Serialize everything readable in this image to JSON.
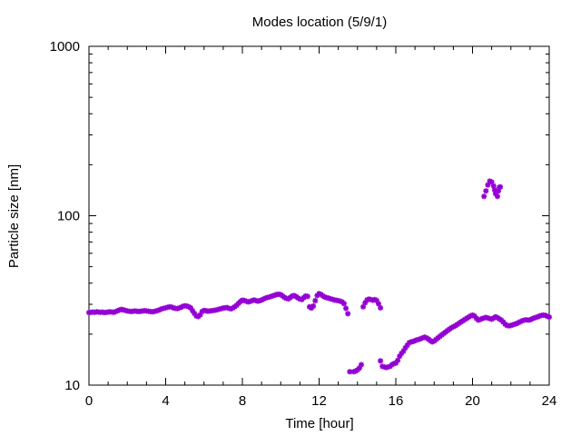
{
  "chart_data": {
    "type": "scatter",
    "title": "Modes location (5/9/1)",
    "xlabel": "Time [hour]",
    "ylabel": "Particle size [nm]",
    "xlim": [
      0,
      24
    ],
    "ylim": [
      10,
      1000
    ],
    "yscale": "log",
    "grid": false,
    "legend": "none",
    "marker_color": "#9400d3",
    "x_ticks": [
      0,
      4,
      8,
      12,
      16,
      20,
      24
    ],
    "x_tick_labels": [
      "0",
      "4",
      "8",
      "12",
      "16",
      "20",
      "24"
    ],
    "y_ticks": [
      10,
      100,
      1000
    ],
    "y_tick_labels": [
      "10",
      "100",
      "1000"
    ],
    "series": [
      {
        "points": [
          [
            0.0,
            26.8
          ],
          [
            0.1,
            26.9
          ],
          [
            0.2,
            27.0
          ],
          [
            0.3,
            26.9
          ],
          [
            0.4,
            27.1
          ],
          [
            0.5,
            27.0
          ],
          [
            0.6,
            26.9
          ],
          [
            0.7,
            27.0
          ],
          [
            0.8,
            26.8
          ],
          [
            0.9,
            26.9
          ],
          [
            1.0,
            27.0
          ],
          [
            1.1,
            27.1
          ],
          [
            1.2,
            27.0
          ],
          [
            1.3,
            26.9
          ],
          [
            1.4,
            27.2
          ],
          [
            1.5,
            27.5
          ],
          [
            1.6,
            27.8
          ],
          [
            1.7,
            28.0
          ],
          [
            1.8,
            27.8
          ],
          [
            1.9,
            27.6
          ],
          [
            2.0,
            27.4
          ],
          [
            2.1,
            27.3
          ],
          [
            2.2,
            27.2
          ],
          [
            2.3,
            27.3
          ],
          [
            2.4,
            27.4
          ],
          [
            2.5,
            27.3
          ],
          [
            2.6,
            27.2
          ],
          [
            2.7,
            27.3
          ],
          [
            2.8,
            27.4
          ],
          [
            2.9,
            27.5
          ],
          [
            3.0,
            27.4
          ],
          [
            3.1,
            27.3
          ],
          [
            3.2,
            27.2
          ],
          [
            3.3,
            27.1
          ],
          [
            3.4,
            27.2
          ],
          [
            3.5,
            27.4
          ],
          [
            3.6,
            27.6
          ],
          [
            3.7,
            27.9
          ],
          [
            3.8,
            28.2
          ],
          [
            3.9,
            28.4
          ],
          [
            4.0,
            28.6
          ],
          [
            4.1,
            28.8
          ],
          [
            4.2,
            29.0
          ],
          [
            4.3,
            28.9
          ],
          [
            4.4,
            28.6
          ],
          [
            4.5,
            28.4
          ],
          [
            4.6,
            28.3
          ],
          [
            4.7,
            28.5
          ],
          [
            4.8,
            28.8
          ],
          [
            4.9,
            29.2
          ],
          [
            5.0,
            29.4
          ],
          [
            5.1,
            29.3
          ],
          [
            5.2,
            29.0
          ],
          [
            5.3,
            28.6
          ],
          [
            5.4,
            27.5
          ],
          [
            5.5,
            26.5
          ],
          [
            5.6,
            25.6
          ],
          [
            5.7,
            25.4
          ],
          [
            5.8,
            26.0
          ],
          [
            5.9,
            27.2
          ],
          [
            6.0,
            27.6
          ],
          [
            6.1,
            27.5
          ],
          [
            6.2,
            27.3
          ],
          [
            6.3,
            27.4
          ],
          [
            6.4,
            27.5
          ],
          [
            6.5,
            27.6
          ],
          [
            6.6,
            27.7
          ],
          [
            6.7,
            27.9
          ],
          [
            6.8,
            28.1
          ],
          [
            6.9,
            28.3
          ],
          [
            7.0,
            28.5
          ],
          [
            7.1,
            28.6
          ],
          [
            7.2,
            28.7
          ],
          [
            7.3,
            28.4
          ],
          [
            7.4,
            28.2
          ],
          [
            7.5,
            28.5
          ],
          [
            7.6,
            29.0
          ],
          [
            7.7,
            29.6
          ],
          [
            7.8,
            30.4
          ],
          [
            7.9,
            31.2
          ],
          [
            8.0,
            31.7
          ],
          [
            8.1,
            31.6
          ],
          [
            8.2,
            31.3
          ],
          [
            8.3,
            31.0
          ],
          [
            8.4,
            31.2
          ],
          [
            8.5,
            31.5
          ],
          [
            8.6,
            31.8
          ],
          [
            8.7,
            31.6
          ],
          [
            8.8,
            31.3
          ],
          [
            8.9,
            31.5
          ],
          [
            9.0,
            31.8
          ],
          [
            9.1,
            32.2
          ],
          [
            9.2,
            32.6
          ],
          [
            9.3,
            32.9
          ],
          [
            9.4,
            33.1
          ],
          [
            9.5,
            33.4
          ],
          [
            9.6,
            33.7
          ],
          [
            9.7,
            34.0
          ],
          [
            9.8,
            34.3
          ],
          [
            9.9,
            34.4
          ],
          [
            10.0,
            34.2
          ],
          [
            10.1,
            33.6
          ],
          [
            10.2,
            32.9
          ],
          [
            10.3,
            32.5
          ],
          [
            10.4,
            32.3
          ],
          [
            10.5,
            32.9
          ],
          [
            10.6,
            33.6
          ],
          [
            10.7,
            33.8
          ],
          [
            10.8,
            33.3
          ],
          [
            10.9,
            32.7
          ],
          [
            11.0,
            32.2
          ],
          [
            11.1,
            32.0
          ],
          [
            11.2,
            32.8
          ],
          [
            11.3,
            33.6
          ],
          [
            11.4,
            33.4
          ],
          [
            11.5,
            29.0
          ],
          [
            11.6,
            28.5
          ],
          [
            11.7,
            29.3
          ],
          [
            11.8,
            31.5
          ],
          [
            11.9,
            33.8
          ],
          [
            12.0,
            34.7
          ],
          [
            12.1,
            34.3
          ],
          [
            12.2,
            33.6
          ],
          [
            12.3,
            33.1
          ],
          [
            12.4,
            32.8
          ],
          [
            12.5,
            32.6
          ],
          [
            12.6,
            32.3
          ],
          [
            12.7,
            32.1
          ],
          [
            12.8,
            31.8
          ],
          [
            12.9,
            31.7
          ],
          [
            13.0,
            31.5
          ],
          [
            13.1,
            31.3
          ],
          [
            13.2,
            31.0
          ],
          [
            13.3,
            30.3
          ],
          [
            13.4,
            28.4
          ],
          [
            13.5,
            26.4
          ],
          [
            13.6,
            12.0
          ],
          [
            13.8,
            12.0
          ],
          [
            13.9,
            12.1
          ],
          [
            14.0,
            12.3
          ],
          [
            14.1,
            12.6
          ],
          [
            14.2,
            13.2
          ],
          [
            14.3,
            29.0
          ],
          [
            14.4,
            30.6
          ],
          [
            14.5,
            31.8
          ],
          [
            14.6,
            32.2
          ],
          [
            14.7,
            32.0
          ],
          [
            14.8,
            31.7
          ],
          [
            14.9,
            32.0
          ],
          [
            15.0,
            31.6
          ],
          [
            15.1,
            30.2
          ],
          [
            15.2,
            28.6
          ],
          [
            15.2,
            13.9
          ],
          [
            15.3,
            12.9
          ],
          [
            15.4,
            12.8
          ],
          [
            15.5,
            12.7
          ],
          [
            15.6,
            12.8
          ],
          [
            15.7,
            12.9
          ],
          [
            15.8,
            13.2
          ],
          [
            15.9,
            13.4
          ],
          [
            16.0,
            13.5
          ],
          [
            16.1,
            14.0
          ],
          [
            16.2,
            14.8
          ],
          [
            16.3,
            15.4
          ],
          [
            16.4,
            15.9
          ],
          [
            16.5,
            16.6
          ],
          [
            16.6,
            17.2
          ],
          [
            16.7,
            17.8
          ],
          [
            16.8,
            18.0
          ],
          [
            16.9,
            18.1
          ],
          [
            17.0,
            18.3
          ],
          [
            17.1,
            18.5
          ],
          [
            17.2,
            18.6
          ],
          [
            17.3,
            18.8
          ],
          [
            17.4,
            19.0
          ],
          [
            17.5,
            19.2
          ],
          [
            17.6,
            19.0
          ],
          [
            17.7,
            18.7
          ],
          [
            17.8,
            18.3
          ],
          [
            17.9,
            18.0
          ],
          [
            18.0,
            18.2
          ],
          [
            18.1,
            18.6
          ],
          [
            18.2,
            19.0
          ],
          [
            18.3,
            19.4
          ],
          [
            18.4,
            19.8
          ],
          [
            18.5,
            20.2
          ],
          [
            18.6,
            20.6
          ],
          [
            18.7,
            21.0
          ],
          [
            18.8,
            21.4
          ],
          [
            18.9,
            21.8
          ],
          [
            19.0,
            22.1
          ],
          [
            19.1,
            22.4
          ],
          [
            19.2,
            22.8
          ],
          [
            19.3,
            23.2
          ],
          [
            19.4,
            23.6
          ],
          [
            19.5,
            24.0
          ],
          [
            19.6,
            24.4
          ],
          [
            19.7,
            24.8
          ],
          [
            19.8,
            25.2
          ],
          [
            19.9,
            25.6
          ],
          [
            20.0,
            25.9
          ],
          [
            20.1,
            25.6
          ],
          [
            20.2,
            24.8
          ],
          [
            20.3,
            24.2
          ],
          [
            20.4,
            24.4
          ],
          [
            20.5,
            24.7
          ],
          [
            20.6,
            24.9
          ],
          [
            20.7,
            25.1
          ],
          [
            20.8,
            24.9
          ],
          [
            20.9,
            24.7
          ],
          [
            21.0,
            24.5
          ],
          [
            21.1,
            24.9
          ],
          [
            21.2,
            25.3
          ],
          [
            21.3,
            25.0
          ],
          [
            21.4,
            24.6
          ],
          [
            21.5,
            24.2
          ],
          [
            21.6,
            23.6
          ],
          [
            21.7,
            22.9
          ],
          [
            21.8,
            22.5
          ],
          [
            21.9,
            22.4
          ],
          [
            22.0,
            22.5
          ],
          [
            22.1,
            22.7
          ],
          [
            22.2,
            22.9
          ],
          [
            22.3,
            23.1
          ],
          [
            22.4,
            23.4
          ],
          [
            22.5,
            23.7
          ],
          [
            22.6,
            24.0
          ],
          [
            22.7,
            24.2
          ],
          [
            22.8,
            24.3
          ],
          [
            22.9,
            24.2
          ],
          [
            23.0,
            24.3
          ],
          [
            23.1,
            24.6
          ],
          [
            23.2,
            24.9
          ],
          [
            23.3,
            25.1
          ],
          [
            23.4,
            25.3
          ],
          [
            23.5,
            25.6
          ],
          [
            23.6,
            25.8
          ],
          [
            23.7,
            25.9
          ],
          [
            23.8,
            25.8
          ],
          [
            23.9,
            25.5
          ],
          [
            24.0,
            25.2
          ],
          [
            20.6,
            130
          ],
          [
            20.7,
            140
          ],
          [
            20.8,
            152
          ],
          [
            20.9,
            160
          ],
          [
            21.0,
            158
          ],
          [
            21.1,
            150
          ],
          [
            21.15,
            142
          ],
          [
            21.2,
            135
          ],
          [
            21.3,
            130
          ],
          [
            21.35,
            140
          ],
          [
            21.4,
            147
          ],
          [
            21.45,
            148
          ]
        ]
      }
    ]
  }
}
